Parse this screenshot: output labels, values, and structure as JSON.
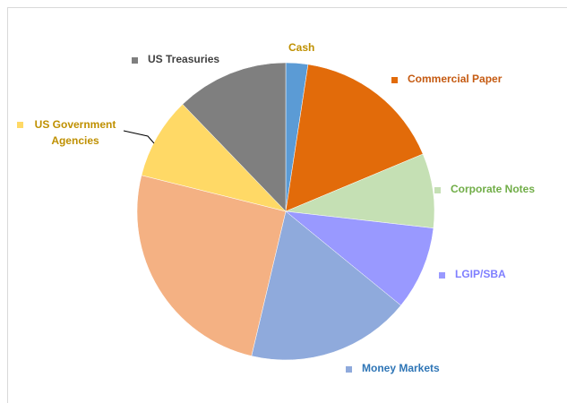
{
  "chart_data": {
    "type": "pie",
    "categories": [
      "Cash",
      "Commercial Paper",
      "Corporate Notes",
      "LGIP/SBA",
      "Money Markets",
      null,
      "US Government Agencies",
      "US Treasuries"
    ],
    "values": [
      2.4,
      16.3,
      8.1,
      9.1,
      17.8,
      25.2,
      8.9,
      12.2
    ],
    "colors": [
      "#5b9bd5",
      "#e26b0a",
      "#c5e0b4",
      "#9999ff",
      "#8faadc",
      "#f4b183",
      "#ffd966",
      "#7f7f7f"
    ],
    "label_colors": [
      "#bf9000",
      "#c55a11",
      "#70ad47",
      "#7f7fff",
      "#2e75b6",
      null,
      "#bf9000",
      "#404040"
    ]
  }
}
